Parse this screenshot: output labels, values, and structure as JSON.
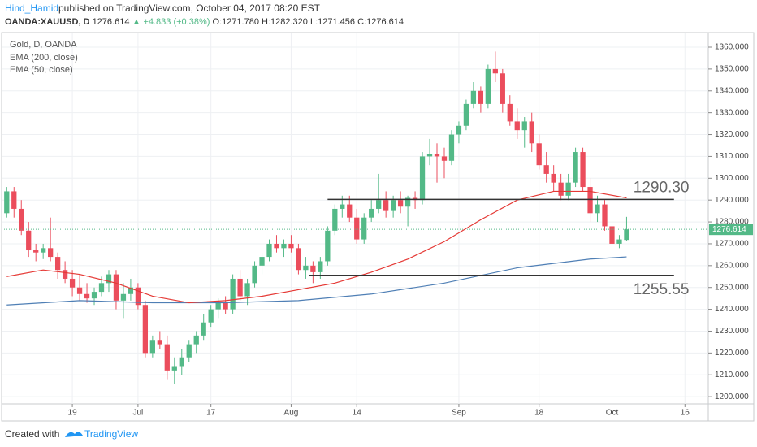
{
  "header": {
    "author": "Hind_Hamid",
    "published": "published on TradingView.com, October 04, 2017 08:20 EST",
    "symbol": "OANDA:XAUUSD, D",
    "price": "1276.614",
    "change": "▲ +4.833 (+0.38%)",
    "open": "O:1271.780",
    "high": "H:1282.320",
    "low": "L:1271.456",
    "close": "C:1276.614"
  },
  "footer": {
    "created": "Created with",
    "brand": "TradingView"
  },
  "chart_data": {
    "type": "candlestick",
    "legend": [
      "Gold, D, OANDA",
      "EMA (200, close)",
      "EMA (50, close)"
    ],
    "up_color": "#53b987",
    "down_color": "#eb4d5c",
    "open": [
      1284,
      1294,
      1286,
      1276,
      1267,
      1266,
      1268,
      1264,
      1258,
      1254,
      1250,
      1247,
      1245,
      1248,
      1252,
      1256,
      1244,
      1247,
      1250,
      1242,
      1220,
      1226,
      1224,
      1212,
      1214,
      1218,
      1224,
      1228,
      1234,
      1240,
      1243,
      1240,
      1254,
      1246,
      1252,
      1260,
      1264,
      1270,
      1268,
      1270,
      1268,
      1258,
      1260,
      1257,
      1262,
      1276,
      1286,
      1288,
      1282,
      1272,
      1282,
      1286,
      1290,
      1285,
      1290,
      1287,
      1291,
      1290,
      1310,
      1311,
      1310,
      1308,
      1320,
      1324,
      1334,
      1340,
      1334,
      1350,
      1348,
      1334,
      1326,
      1322,
      1326,
      1316,
      1306,
      1302,
      1298,
      1292,
      1298,
      1312,
      1296,
      1284,
      1288,
      1278,
      1270,
      1271.78
    ],
    "high": [
      1296,
      1296,
      1290,
      1280,
      1270,
      1270,
      1282,
      1266,
      1262,
      1258,
      1256,
      1252,
      1250,
      1255,
      1258,
      1258,
      1252,
      1254,
      1252,
      1244,
      1228,
      1230,
      1228,
      1218,
      1222,
      1226,
      1230,
      1238,
      1242,
      1245,
      1246,
      1256,
      1258,
      1254,
      1262,
      1266,
      1272,
      1274,
      1272,
      1274,
      1270,
      1264,
      1262,
      1264,
      1278,
      1288,
      1292,
      1292,
      1286,
      1284,
      1290,
      1302,
      1294,
      1292,
      1294,
      1292,
      1294,
      1312,
      1318,
      1316,
      1314,
      1322,
      1326,
      1336,
      1344,
      1342,
      1352,
      1358,
      1350,
      1338,
      1332,
      1328,
      1330,
      1320,
      1312,
      1306,
      1302,
      1302,
      1314,
      1314,
      1300,
      1292,
      1290,
      1280,
      1274,
      1282.32
    ],
    "low": [
      1282,
      1282,
      1274,
      1264,
      1262,
      1263,
      1262,
      1254,
      1252,
      1246,
      1244,
      1243,
      1242,
      1246,
      1248,
      1240,
      1236,
      1244,
      1240,
      1218,
      1218,
      1222,
      1208,
      1206,
      1210,
      1216,
      1220,
      1226,
      1232,
      1236,
      1238,
      1238,
      1244,
      1242,
      1250,
      1256,
      1262,
      1266,
      1264,
      1266,
      1256,
      1254,
      1252,
      1254,
      1260,
      1274,
      1282,
      1280,
      1270,
      1270,
      1280,
      1284,
      1282,
      1282,
      1284,
      1278,
      1286,
      1288,
      1306,
      1298,
      1300,
      1306,
      1316,
      1322,
      1332,
      1330,
      1332,
      1344,
      1330,
      1324,
      1318,
      1314,
      1312,
      1304,
      1298,
      1294,
      1290,
      1290,
      1296,
      1294,
      1280,
      1280,
      1276,
      1268,
      1268,
      1271.456
    ],
    "close": [
      1294,
      1286,
      1276,
      1267,
      1266,
      1268,
      1264,
      1258,
      1254,
      1250,
      1247,
      1245,
      1248,
      1252,
      1256,
      1244,
      1247,
      1250,
      1242,
      1220,
      1226,
      1224,
      1212,
      1214,
      1218,
      1224,
      1228,
      1234,
      1240,
      1243,
      1240,
      1254,
      1246,
      1252,
      1260,
      1264,
      1270,
      1268,
      1270,
      1268,
      1258,
      1260,
      1257,
      1262,
      1276,
      1286,
      1288,
      1282,
      1272,
      1282,
      1286,
      1290,
      1285,
      1290,
      1287,
      1291,
      1290,
      1310,
      1311,
      1310,
      1308,
      1320,
      1324,
      1334,
      1340,
      1334,
      1350,
      1348,
      1334,
      1326,
      1322,
      1326,
      1316,
      1306,
      1302,
      1298,
      1292,
      1298,
      1312,
      1296,
      1284,
      1288,
      1278,
      1270,
      1272,
      1276.614
    ],
    "series": [
      {
        "name": "EMA (200, close)",
        "color": "#4f7fb5",
        "x": [
          0,
          10,
          20,
          30,
          40,
          50,
          60,
          70,
          80,
          85
        ],
        "values": [
          1242,
          1244,
          1243,
          1243,
          1244,
          1247,
          1252,
          1259,
          1263,
          1264
        ]
      },
      {
        "name": "EMA (50, close)",
        "color": "#e53935",
        "x": [
          0,
          5,
          10,
          15,
          20,
          25,
          30,
          35,
          40,
          45,
          50,
          55,
          60,
          65,
          70,
          75,
          80,
          85
        ],
        "values": [
          1255,
          1258,
          1256,
          1252,
          1246,
          1243,
          1244,
          1246,
          1249,
          1252,
          1257,
          1263,
          1271,
          1281,
          1290,
          1294,
          1294,
          1291
        ]
      }
    ],
    "annotations": [
      {
        "value": 1290.3,
        "label": "1290.30"
      },
      {
        "value": 1255.55,
        "label": "1255.55"
      }
    ],
    "last_price": 1276.614,
    "xlim": [
      -0.7,
      96.2
    ],
    "ylim": [
      1196.7,
      1366.7
    ],
    "xticks": [
      {
        "value": 9,
        "label": "19"
      },
      {
        "value": 18,
        "label": "Jul"
      },
      {
        "value": 28,
        "label": "17"
      },
      {
        "value": 39,
        "label": "Aug"
      },
      {
        "value": 48,
        "label": "14"
      },
      {
        "value": 62,
        "label": "Sep"
      },
      {
        "value": 73,
        "label": "18"
      },
      {
        "value": 83,
        "label": "Oct"
      },
      {
        "value": 93,
        "label": "16"
      }
    ],
    "yticks": [
      {
        "value": 1200,
        "label": "1200.000"
      },
      {
        "value": 1210,
        "label": "1210.000"
      },
      {
        "value": 1220,
        "label": "1220.000"
      },
      {
        "value": 1230,
        "label": "1230.000"
      },
      {
        "value": 1240,
        "label": "1240.000"
      },
      {
        "value": 1250,
        "label": "1250.000"
      },
      {
        "value": 1260,
        "label": "1260.000"
      },
      {
        "value": 1270,
        "label": "1270.000"
      },
      {
        "value": 1280,
        "label": "1280.000"
      },
      {
        "value": 1290,
        "label": "1290.000"
      },
      {
        "value": 1300,
        "label": "1300.000"
      },
      {
        "value": 1310,
        "label": "1310.000"
      },
      {
        "value": 1320,
        "label": "1320.000"
      },
      {
        "value": 1330,
        "label": "1330.000"
      },
      {
        "value": 1340,
        "label": "1340.000"
      },
      {
        "value": 1350,
        "label": "1350.000"
      },
      {
        "value": 1360,
        "label": "1360.000"
      }
    ],
    "grid": true
  }
}
